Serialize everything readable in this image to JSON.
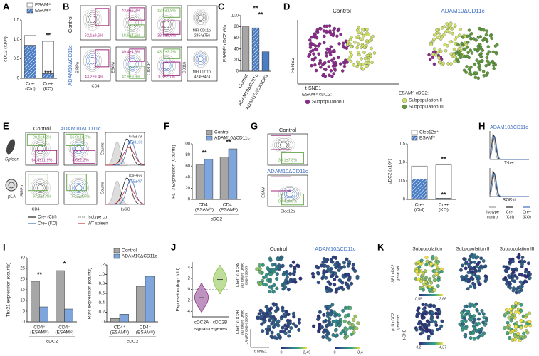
{
  "letters": [
    "A",
    "B",
    "C",
    "D",
    "E",
    "F",
    "G",
    "H",
    "I",
    "J",
    "K"
  ],
  "chart_data": [
    {
      "type": "bar",
      "stacked": true,
      "ylabel": "cDC2 (x10⁵)",
      "categories": [
        "Cre-",
        "Cre+"
      ],
      "category_sublabels": [
        "(Ctrl)",
        "(KO)"
      ],
      "ylim": [
        0,
        1.5
      ],
      "yticks": [
        0,
        0.5,
        {
          "value": 1,
          "label": "1.0"
        },
        1.5
      ],
      "series": [
        {
          "name": "ESAMʰⁱ",
          "color": "#4a7dc4",
          "hatch": true,
          "values": [
            0.85,
            0.12
          ]
        },
        {
          "name": "ESAMˡᵒ",
          "color": "#ffffff",
          "values": [
            0.25,
            0.83
          ]
        }
      ],
      "annotations": [
        "**",
        "***"
      ]
    },
    {
      "type": "bar",
      "ylabel": "ESAMʰⁱ cDC2 (%)",
      "categories": [
        "Control",
        "ADAM10ΔCD11c",
        "ADAM10ΔCX3CR1"
      ],
      "values": [
        80,
        78,
        35
      ],
      "colors": [
        "#a6a6a6",
        "#4a7dc4",
        "#4a7dc4"
      ],
      "hatches": [
        false,
        true,
        false
      ],
      "ylim": [
        0,
        100
      ],
      "yticks": [
        0,
        20,
        40,
        60,
        80,
        100
      ],
      "annotations": [
        "**",
        "**"
      ]
    },
    {
      "type": "bar",
      "ylabel": "FLT3 Expression (Counts)",
      "xlabel": "cDC2",
      "categories": [
        "CD4⁺",
        "CD4⁻"
      ],
      "category_sublabels": [
        "(ESAMʰⁱ)",
        "(ESAMˡᵒ)"
      ],
      "ylim": [
        0,
        100
      ],
      "yticks": [
        0,
        20,
        40,
        60,
        80,
        100
      ],
      "series": [
        {
          "name": "Control",
          "color": "#a6a6a6",
          "values": [
            62,
            76
          ]
        },
        {
          "name": "ADAM10ΔCD11c",
          "color": "#7ea6dc",
          "values": [
            72,
            91
          ]
        }
      ],
      "annotations": [
        "**",
        "**"
      ]
    },
    {
      "type": "bar",
      "stacked": true,
      "ylabel": "cDC2 (x10⁵)",
      "categories": [
        "Cre-",
        "Cre+"
      ],
      "category_sublabels": [
        "(Ctrl)",
        "(KO)"
      ],
      "ylim": [
        0,
        1.5
      ],
      "yticks": [
        0,
        0.5,
        {
          "value": 1,
          "label": "1.0"
        },
        1.5
      ],
      "series": [
        {
          "name": "ESAMʰⁱ",
          "color": "#4a7dc4",
          "hatch": true,
          "values": [
            0.55,
            0.03
          ]
        },
        {
          "name": "Clec12a⁺",
          "color": "#ffffff",
          "values": [
            0.35,
            0.9
          ]
        }
      ],
      "annotations": [
        "**",
        "**"
      ]
    },
    {
      "type": "bar",
      "ylabel": "Tbx21 expression (counts)",
      "xlabel": "cDC2",
      "categories": [
        "CD4⁺",
        "CD4⁻"
      ],
      "category_sublabels": [
        "(ESAMʰⁱ)",
        "(ESAMˡᵒ)"
      ],
      "ylim": [
        0,
        30
      ],
      "yticks": [
        0,
        5,
        10,
        15,
        20,
        25,
        30
      ],
      "series": [
        {
          "color": "#a6a6a6",
          "values": [
            19,
            24
          ]
        },
        {
          "color": "#7ea6dc",
          "values": [
            7,
            6
          ]
        }
      ],
      "annotations": [
        "**",
        "*"
      ]
    },
    {
      "type": "bar",
      "ylabel": "Rorc expression (counts)",
      "xlabel": "cDC2",
      "categories": [
        "CD4⁺",
        "CD4⁻"
      ],
      "category_sublabels": [
        "(ESAMʰⁱ)",
        "(ESAMˡᵒ)"
      ],
      "ylim": [
        0,
        1.2
      ],
      "yticks": [
        0,
        0.2,
        0.4,
        0.6,
        0.8,
        {
          "value": 1,
          "label": "1.0"
        },
        1.2
      ],
      "series": [
        {
          "name": "Control",
          "color": "#a6a6a6",
          "values": [
            0.07,
            0.75
          ]
        },
        {
          "name": "ADAM10ΔCD11c",
          "color": "#7ea6dc",
          "values": [
            0.16,
            0.96
          ]
        }
      ]
    },
    {
      "type": "violin",
      "ylabel": "Expression (log₂ fold)",
      "categories": [
        "cDC2A",
        "cDC2B"
      ],
      "xlabel": "signature genes",
      "values": [
        -1.5,
        1.8
      ],
      "colors": [
        "#8b3a8b",
        "#8bc34a"
      ],
      "ylim": [
        -5,
        5
      ],
      "yticks": [
        -4,
        -2,
        0,
        2,
        4
      ]
    }
  ],
  "panel_b": {
    "rows": [
      "Control",
      "ADAM10ΔCD11c"
    ],
    "axes": [
      "SIRPα",
      "CD4",
      "ESAM",
      "CX3CR1",
      "CD11b"
    ],
    "gates": [
      [
        "62,1±9,6%",
        "43,9±6,2%",
        "18,6±4,6%",
        "12,6±1,8%",
        "38,8±9,6%"
      ],
      [
        "43,2±9,4%",
        "49,4±4,6%",
        "42,9±9,9%",
        "43,7±3,2%",
        "9,3±2,1%"
      ]
    ],
    "mfi_label": "MFI CD11b:",
    "mfi": [
      "2354±756",
      "4245±474"
    ]
  },
  "panel_d": {
    "groups": [
      "Control",
      "ADAM10ΔCD11c"
    ],
    "axes": [
      "t-SNE2",
      "t-SNE1"
    ],
    "legend": [
      {
        "title": "ESAMʰⁱ cDC2:",
        "items": [
          "Subpopulation I"
        ]
      },
      {
        "title": "ESAMˡᵒ cDC2:",
        "items": [
          "Subpopulation II",
          "Subpopulation III"
        ]
      }
    ],
    "colors": [
      "#8e2a8e",
      "#cfe06a",
      "#5f9a3a"
    ]
  },
  "panel_e": {
    "groups": [
      "Control",
      "ADAM10ΔCD11c"
    ],
    "tissues": [
      "Spleen",
      "pLN"
    ],
    "gates": [
      [
        "20,8±4,2%",
        "64,4±11,9%",
        "66,9±18,7%",
        "4,6±2,3%"
      ],
      [
        "67,7±4,4%",
        "77,7±4,5%"
      ]
    ],
    "mfi": [
      [
        "648±79",
        "1103±96"
      ],
      [
        "836±66",
        "755±47"
      ]
    ],
    "axes": [
      "SIRPα",
      "CD4",
      "Counts",
      "Ly6C"
    ],
    "legend": [
      "Cre- (Ctrl)",
      "Cre+ (KO)",
      "Isotype ctrl",
      "WT spleen"
    ]
  },
  "panel_g": {
    "groups": [
      "Control",
      "ADAM10ΔCD11c"
    ],
    "gates": [
      "33,1±7,8%",
      "90,4±6,6%"
    ],
    "axes": [
      "ESAM",
      "Clec12a"
    ]
  },
  "panel_h": {
    "title": "ADAM10ΔCD11c",
    "markers": [
      "T-bet",
      "RORγt"
    ],
    "legend": [
      [
        "Isotype",
        "control"
      ],
      [
        "Cre-",
        "(Ctrl)"
      ],
      [
        "Cre+",
        "(KO)"
      ]
    ]
  },
  "panel_j": {
    "groups": [
      "Control",
      "ADAM10ΔCD11c"
    ],
    "rows": [
      [
        "T-bet⁺ cDC2A",
        "signature gene",
        "expression"
      ],
      [
        "T-bet⁻ cDC2B",
        "signature gene",
        "expression"
      ]
    ],
    "scales": [
      [
        "0",
        "3,49"
      ],
      [
        "0",
        "3,4"
      ]
    ],
    "axes": [
      "t-SNE1",
      "t-SNE2"
    ]
  },
  "panel_k": {
    "groups": [
      "Subpopulation I",
      "Subpopulation II",
      "Subpopulation III"
    ],
    "rows": [
      [
        "SPL cDC2",
        "gene set"
      ],
      [
        "pLN cDC2",
        "gene set"
      ]
    ],
    "scales": [
      [
        "0,55",
        "3,66"
      ],
      [
        "0,2",
        "4,37"
      ]
    ],
    "axis": "t-SNE"
  }
}
